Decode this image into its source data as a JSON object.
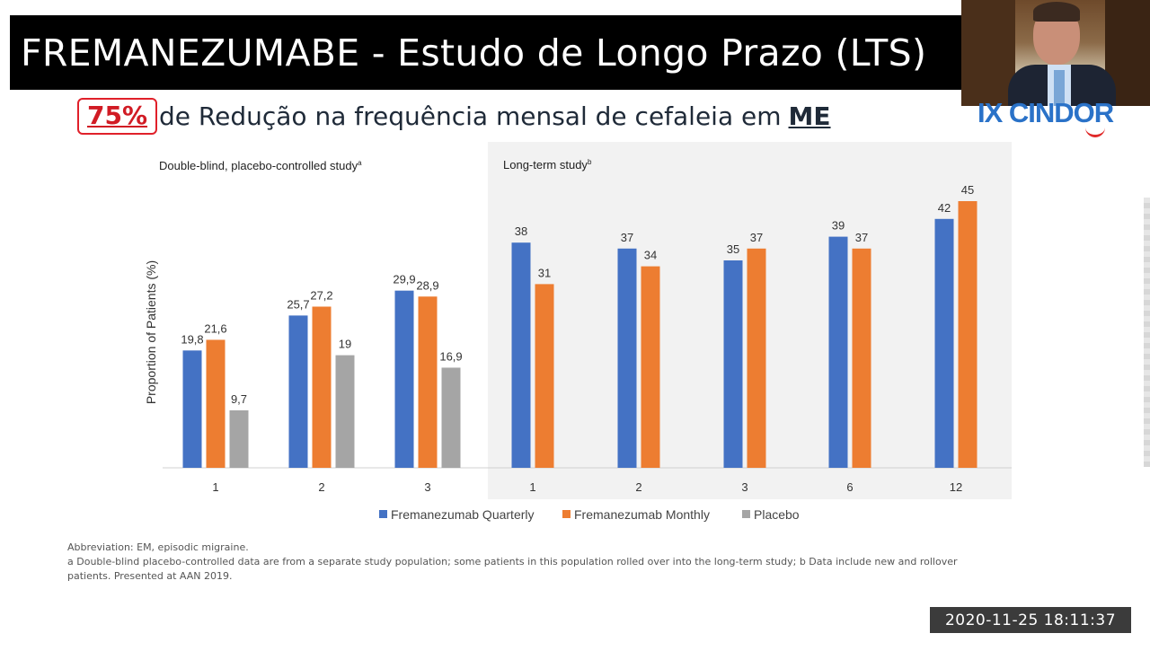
{
  "slide": {
    "title": "FREMANEZUMABE - Estudo de Longo Prazo (LTS)",
    "badge": "75%",
    "subtitle": "de Redução na frequência mensal de cefaleia em",
    "subtitle_emph": "ME"
  },
  "logo": {
    "text": "IX CINDOR"
  },
  "timestamp": "2020-11-25  18:11:37",
  "footnotes": {
    "abbreviation": "Abbreviation: EM, episodic migraine.",
    "note_a": "a Double-blind placebo-controlled data are from a separate study population; some patients in this population rolled over into the long-term study; b Data include new and rollover",
    "note_b": "patients. Presented at AAN 2019."
  },
  "colors": {
    "quarterly": "#4472C4",
    "monthly": "#ED7D31",
    "placebo": "#A5A5A5",
    "lts_panel": "#F2F2F2"
  },
  "chart_data": {
    "type": "bar",
    "ylabel": "Proportion of Patients (%)",
    "ylim": [
      0,
      50
    ],
    "grid": false,
    "legend_position": "bottom",
    "legend": [
      "Fremanezumab Quarterly",
      "Fremanezumab Monthly",
      "Placebo"
    ],
    "panels": [
      {
        "title": "Double-blind, placebo-controlled study",
        "title_sup": "a",
        "categories": [
          "1",
          "2",
          "3"
        ],
        "series": [
          {
            "name": "Fremanezumab Quarterly",
            "values": [
              19.8,
              25.7,
              29.9
            ],
            "labels": [
              "19,8",
              "25,7",
              "29,9"
            ]
          },
          {
            "name": "Fremanezumab Monthly",
            "values": [
              21.6,
              27.2,
              28.9
            ],
            "labels": [
              "21,6",
              "27,2",
              "28,9"
            ]
          },
          {
            "name": "Placebo",
            "values": [
              9.7,
              19,
              16.9
            ],
            "labels": [
              "9,7",
              "19",
              "16,9"
            ]
          }
        ]
      },
      {
        "title": "Long-term study",
        "title_sup": "b",
        "categories": [
          "1",
          "2",
          "3",
          "6",
          "12"
        ],
        "series": [
          {
            "name": "Fremanezumab Quarterly",
            "values": [
              38,
              37,
              35,
              39,
              42
            ],
            "labels": [
              "38",
              "37",
              "35",
              "39",
              "42"
            ]
          },
          {
            "name": "Fremanezumab Monthly",
            "values": [
              31,
              34,
              37,
              37,
              45
            ],
            "labels": [
              "31",
              "34",
              "37",
              "37",
              "45"
            ]
          }
        ]
      }
    ]
  }
}
